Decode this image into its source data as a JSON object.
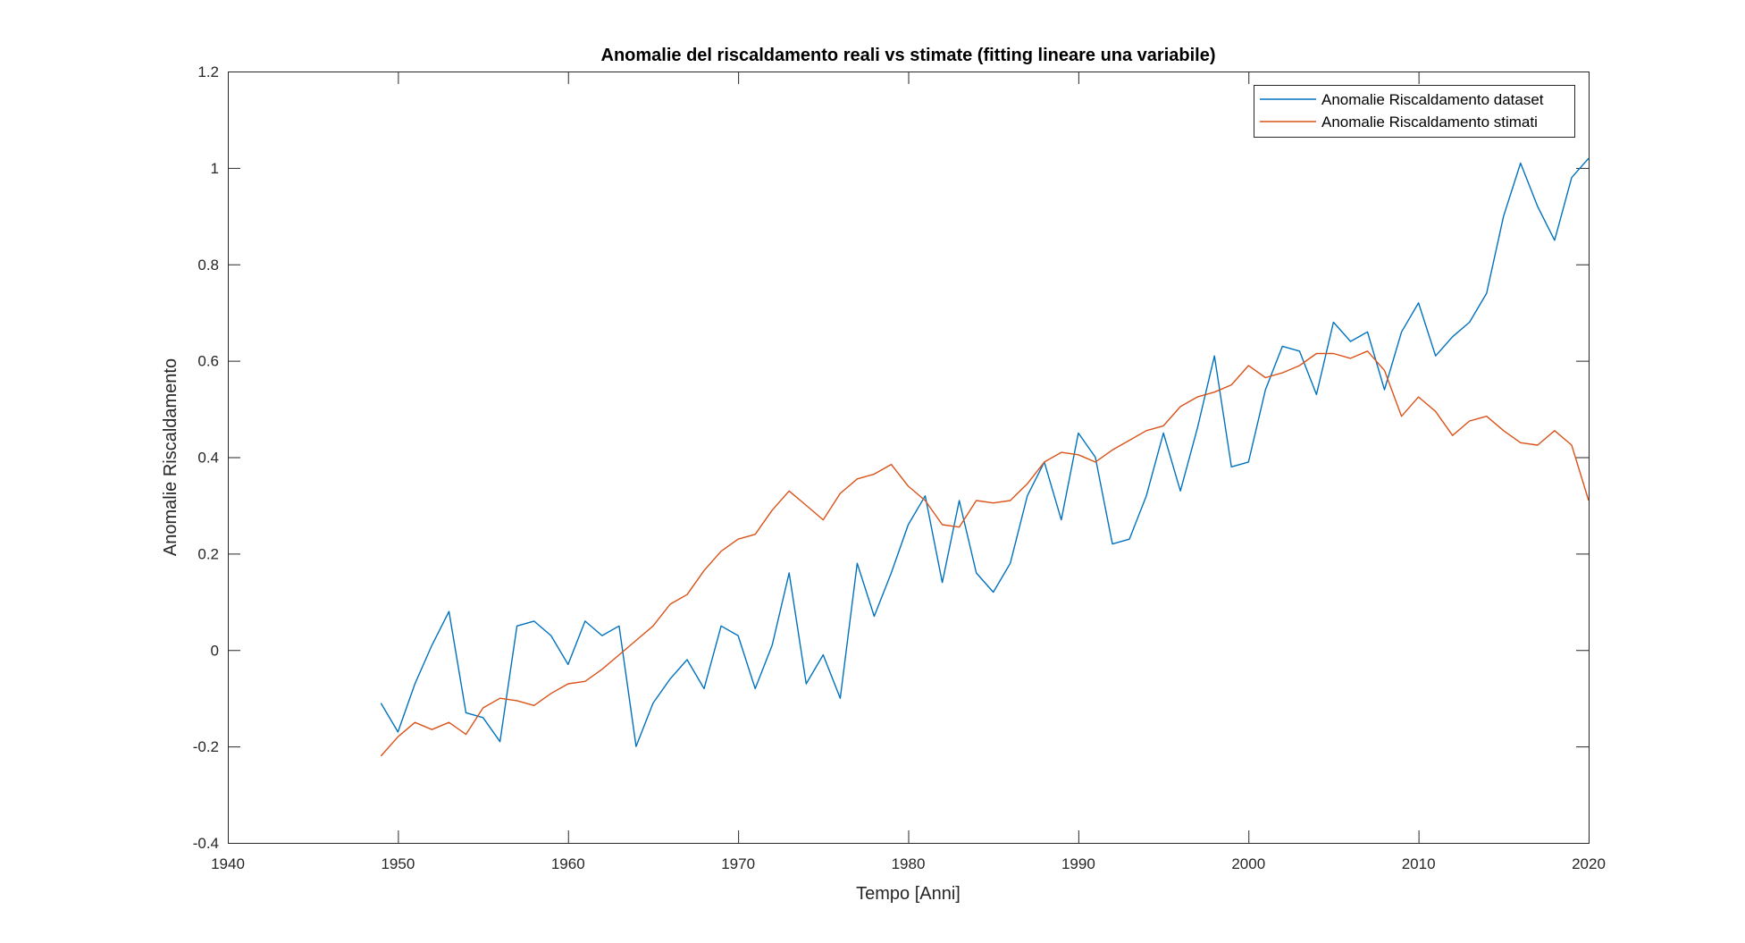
{
  "chart_data": {
    "type": "line",
    "title": "Anomalie del riscaldamento reali vs stimate (fitting lineare una variabile)",
    "xlabel": "Tempo [Anni]",
    "ylabel": "Anomalie Riscaldamento",
    "xlim": [
      1940,
      2020
    ],
    "ylim": [
      -0.4,
      1.2
    ],
    "xticks": [
      1940,
      1950,
      1960,
      1970,
      1980,
      1990,
      2000,
      2010,
      2020
    ],
    "xtick_labels": [
      "1940",
      "1950",
      "1960",
      "1970",
      "1980",
      "1990",
      "2000",
      "2010",
      "2020"
    ],
    "yticks": [
      -0.4,
      -0.2,
      0,
      0.2,
      0.4,
      0.6,
      0.8,
      1,
      1.2
    ],
    "ytick_labels": [
      "-0.4",
      "-0.2",
      "0",
      "0.2",
      "0.4",
      "0.6",
      "0.8",
      "1",
      "1.2"
    ],
    "grid": false,
    "legend_position": "top-right",
    "x": [
      1949,
      1950,
      1951,
      1952,
      1953,
      1954,
      1955,
      1956,
      1957,
      1958,
      1959,
      1960,
      1961,
      1962,
      1963,
      1964,
      1965,
      1966,
      1967,
      1968,
      1969,
      1970,
      1971,
      1972,
      1973,
      1974,
      1975,
      1976,
      1977,
      1978,
      1979,
      1980,
      1981,
      1982,
      1983,
      1984,
      1985,
      1986,
      1987,
      1988,
      1989,
      1990,
      1991,
      1992,
      1993,
      1994,
      1995,
      1996,
      1997,
      1998,
      1999,
      2000,
      2001,
      2002,
      2003,
      2004,
      2005,
      2006,
      2007,
      2008,
      2009,
      2010,
      2011,
      2012,
      2013,
      2014,
      2015,
      2016,
      2017,
      2018,
      2019,
      2020
    ],
    "series": [
      {
        "name": "Anomalie Riscaldamento dataset",
        "color": "#0072BD",
        "values": [
          -0.11,
          -0.17,
          -0.07,
          0.01,
          0.08,
          -0.13,
          -0.14,
          -0.19,
          0.05,
          0.06,
          0.03,
          -0.03,
          0.06,
          0.03,
          0.05,
          -0.2,
          -0.11,
          -0.06,
          -0.02,
          -0.08,
          0.05,
          0.03,
          -0.08,
          0.01,
          0.16,
          -0.07,
          -0.01,
          -0.1,
          0.18,
          0.07,
          0.16,
          0.26,
          0.32,
          0.14,
          0.31,
          0.16,
          0.12,
          0.18,
          0.32,
          0.39,
          0.27,
          0.45,
          0.4,
          0.22,
          0.23,
          0.32,
          0.45,
          0.33,
          0.46,
          0.61,
          0.38,
          0.39,
          0.54,
          0.63,
          0.62,
          0.53,
          0.68,
          0.64,
          0.66,
          0.54,
          0.66,
          0.72,
          0.61,
          0.65,
          0.68,
          0.74,
          0.9,
          1.01,
          0.92,
          0.85,
          0.98,
          1.02
        ]
      },
      {
        "name": "Anomalie Riscaldamento stimati",
        "color": "#D95319",
        "values": [
          -0.22,
          -0.18,
          -0.15,
          -0.165,
          -0.15,
          -0.175,
          -0.12,
          -0.1,
          -0.105,
          -0.115,
          -0.09,
          -0.07,
          -0.065,
          -0.04,
          -0.01,
          0.02,
          0.05,
          0.095,
          0.115,
          0.165,
          0.205,
          0.23,
          0.24,
          0.29,
          0.33,
          0.3,
          0.27,
          0.325,
          0.355,
          0.365,
          0.385,
          0.34,
          0.31,
          0.26,
          0.255,
          0.31,
          0.305,
          0.31,
          0.345,
          0.39,
          0.41,
          0.405,
          0.39,
          0.415,
          0.435,
          0.455,
          0.465,
          0.505,
          0.525,
          0.535,
          0.55,
          0.59,
          0.565,
          0.575,
          0.59,
          0.615,
          0.615,
          0.605,
          0.62,
          0.58,
          0.485,
          0.525,
          0.495,
          0.445,
          0.475,
          0.485,
          0.455,
          0.43,
          0.425,
          0.455,
          0.425,
          0.31
        ]
      }
    ]
  }
}
